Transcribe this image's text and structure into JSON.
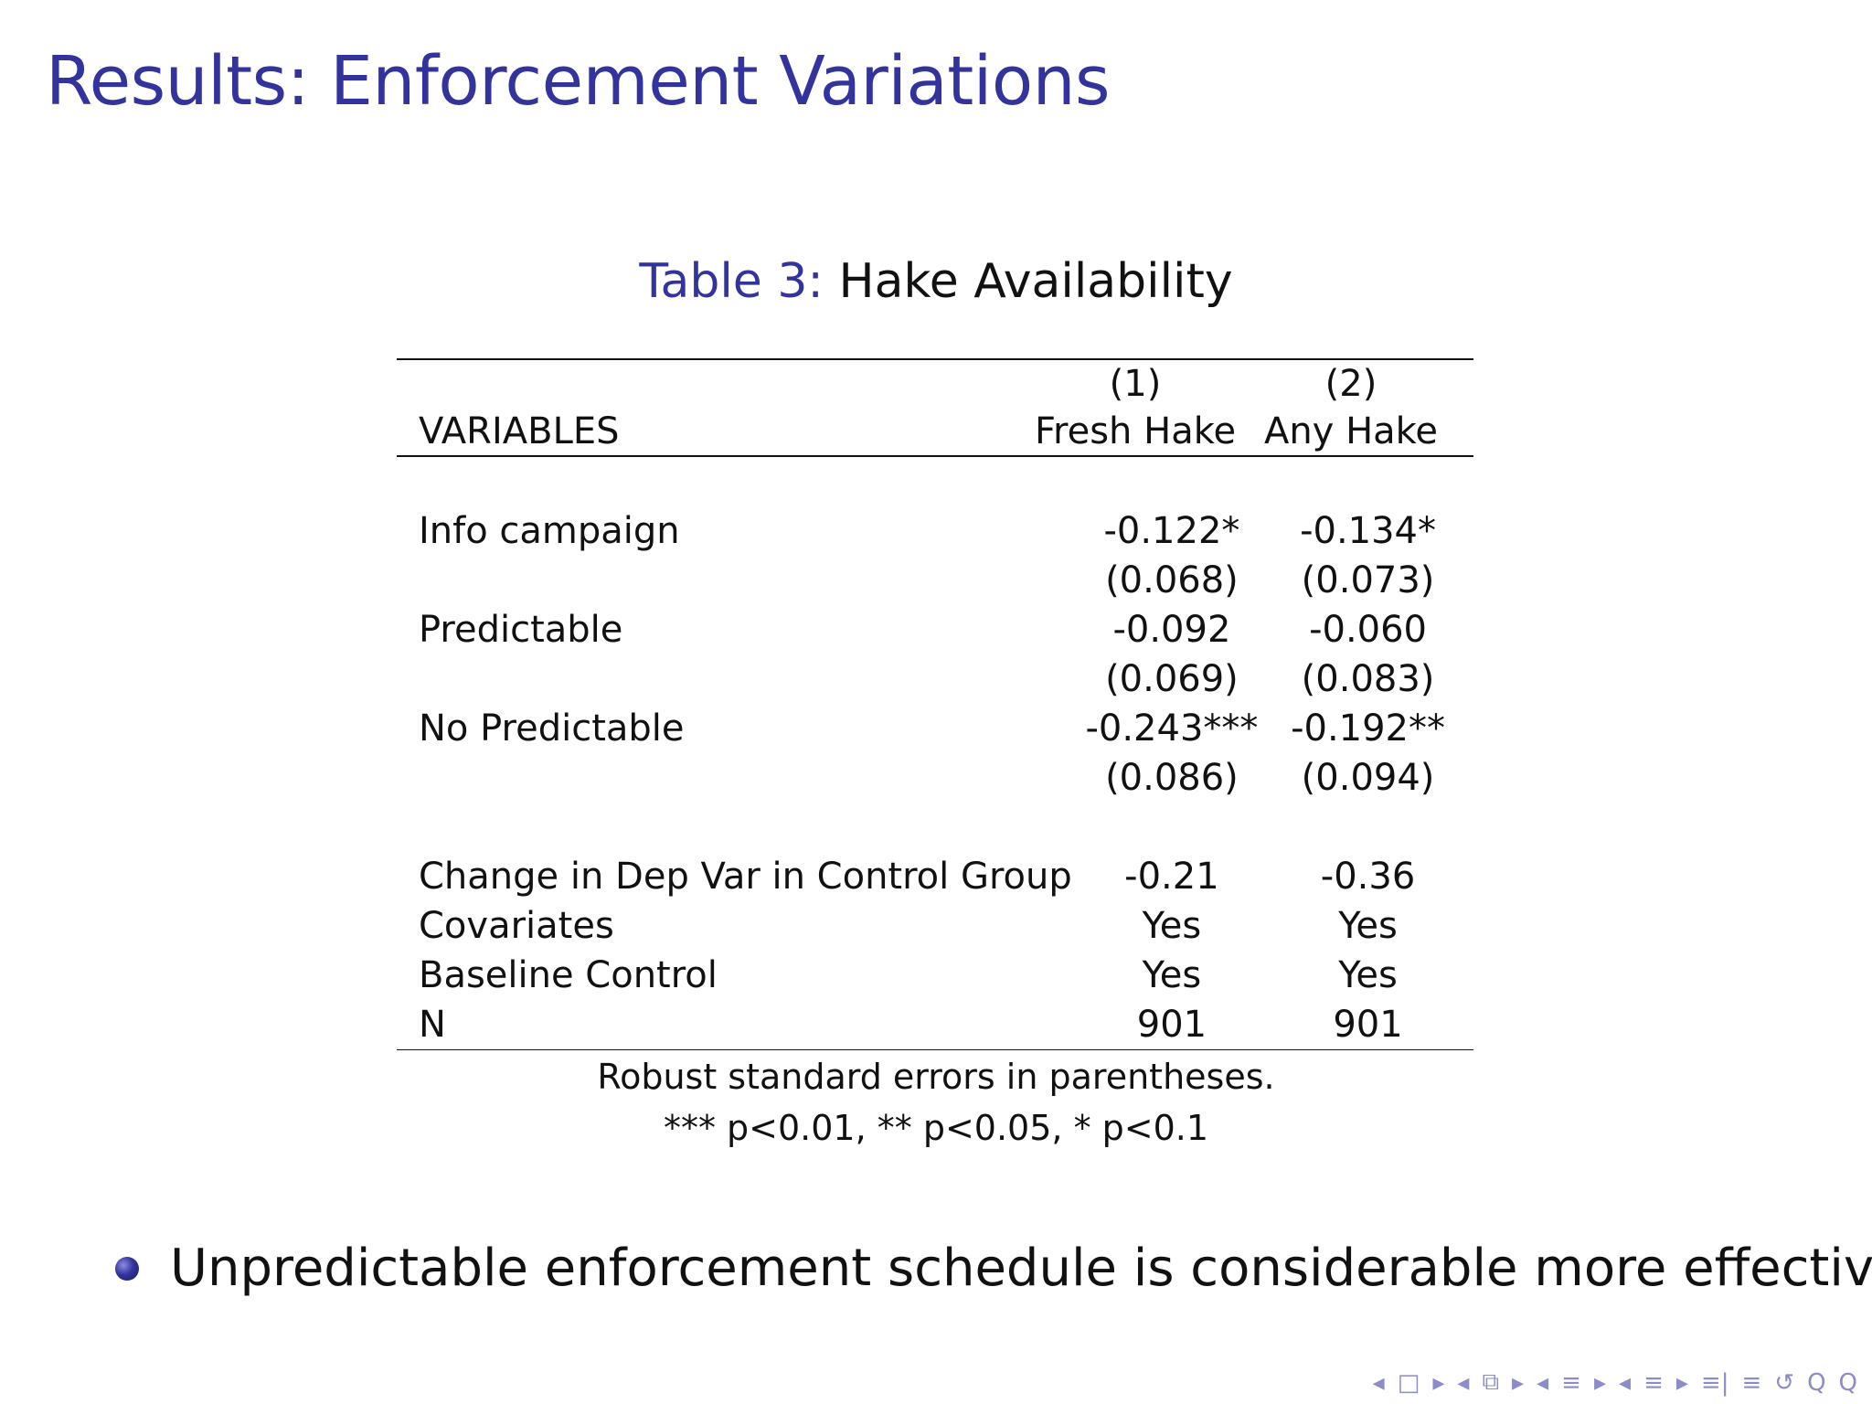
{
  "slide": {
    "title": "Results: Enforcement Variations",
    "caption_label": "Table 3:",
    "caption_text": "Hake Availability"
  },
  "table": {
    "header": {
      "col_numbers": [
        "(1)",
        "(2)"
      ],
      "variables_label": "VARIABLES",
      "col_names": [
        "Fresh Hake",
        "Any Hake"
      ]
    },
    "rows": [
      {
        "label": "Info campaign",
        "values": [
          "-0.122*",
          "-0.134*"
        ],
        "se": [
          "(0.068)",
          "(0.073)"
        ]
      },
      {
        "label": "Predictable",
        "values": [
          "-0.092",
          "-0.060"
        ],
        "se": [
          "(0.069)",
          "(0.083)"
        ]
      },
      {
        "label": "No Predictable",
        "values": [
          "-0.243***",
          "-0.192**"
        ],
        "se": [
          "(0.086)",
          "(0.094)"
        ]
      }
    ],
    "stats": [
      {
        "label": "Change in Dep Var in Control Group",
        "values": [
          "-0.21",
          "-0.36"
        ]
      },
      {
        "label": "Covariates",
        "values": [
          "Yes",
          "Yes"
        ]
      },
      {
        "label": "Baseline Control",
        "values": [
          "Yes",
          "Yes"
        ]
      },
      {
        "label": "N",
        "values": [
          "901",
          "901"
        ]
      }
    ],
    "notes": [
      "Robust standard errors in parentheses.",
      "*** p<0.01, ** p<0.05, * p<0.1"
    ]
  },
  "bullets": [
    "Unpredictable enforcement schedule is considerable more effective."
  ],
  "nav_icons": [
    "◂",
    "□",
    "▸",
    "◂",
    "⧉",
    "▸",
    "◂",
    "≡",
    "▸",
    "◂",
    "≡",
    "▸",
    "≡|",
    "≡",
    "↺",
    "Q",
    "Q"
  ]
}
